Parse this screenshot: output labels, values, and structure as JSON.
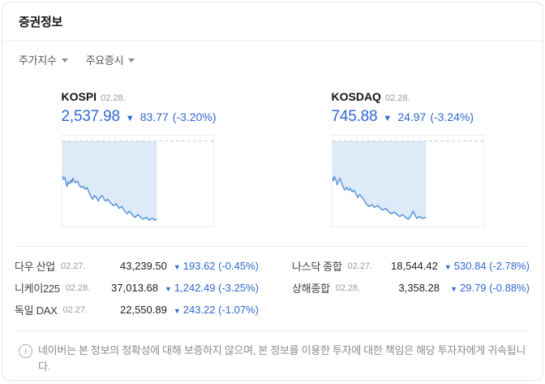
{
  "widget": {
    "title": "증권정보"
  },
  "tabs": [
    {
      "label": "주가지수"
    },
    {
      "label": "주요증시"
    }
  ],
  "colors": {
    "down_blue": "#3068d2",
    "chart_line": "#5b94d6",
    "chart_fill": "#ddeaf8",
    "dash_line": "#c9c9c9",
    "chart_border": "#ededed"
  },
  "indices": [
    {
      "name": "KOSPI",
      "date": "02.28.",
      "value": "2,537.98",
      "change": "83.77",
      "change_pct": "(-3.20%)"
    },
    {
      "name": "KOSDAQ",
      "date": "02.28.",
      "value": "745.88",
      "change": "24.97",
      "change_pct": "(-3.24%)"
    }
  ],
  "chart_data": [
    {
      "type": "line",
      "name": "KOSPI",
      "legend": "intraday index line, dashed previous-close reference at top, shaded area between line and reference",
      "dash_y": 0.06,
      "fill_end": 0.625,
      "points": [
        [
          0,
          0.44
        ],
        [
          0.01,
          0.48
        ],
        [
          0.025,
          0.46
        ],
        [
          0.04,
          0.53
        ],
        [
          0.05,
          0.56
        ],
        [
          0.06,
          0.51
        ],
        [
          0.075,
          0.53
        ],
        [
          0.09,
          0.49
        ],
        [
          0.1,
          0.52
        ],
        [
          0.11,
          0.47
        ],
        [
          0.125,
          0.5
        ],
        [
          0.14,
          0.52
        ],
        [
          0.16,
          0.5
        ],
        [
          0.18,
          0.55
        ],
        [
          0.2,
          0.57
        ],
        [
          0.22,
          0.56
        ],
        [
          0.24,
          0.59
        ],
        [
          0.26,
          0.57
        ],
        [
          0.28,
          0.62
        ],
        [
          0.3,
          0.67
        ],
        [
          0.32,
          0.7
        ],
        [
          0.34,
          0.66
        ],
        [
          0.36,
          0.68
        ],
        [
          0.38,
          0.72
        ],
        [
          0.4,
          0.68
        ],
        [
          0.42,
          0.66
        ],
        [
          0.44,
          0.7
        ],
        [
          0.46,
          0.72
        ],
        [
          0.48,
          0.7
        ],
        [
          0.51,
          0.74
        ],
        [
          0.54,
          0.77
        ],
        [
          0.57,
          0.75
        ],
        [
          0.6,
          0.8
        ],
        [
          0.63,
          0.78
        ],
        [
          0.66,
          0.83
        ],
        [
          0.69,
          0.86
        ],
        [
          0.71,
          0.83
        ],
        [
          0.74,
          0.87
        ],
        [
          0.77,
          0.9
        ],
        [
          0.8,
          0.87
        ],
        [
          0.83,
          0.9
        ],
        [
          0.86,
          0.92
        ],
        [
          0.89,
          0.9
        ],
        [
          0.92,
          0.93
        ],
        [
          0.95,
          0.91
        ],
        [
          0.98,
          0.93
        ],
        [
          1,
          0.92
        ]
      ]
    },
    {
      "type": "line",
      "name": "KOSDAQ",
      "legend": "intraday index line, dashed previous-close reference at top, shaded area between line and reference",
      "dash_y": 0.06,
      "fill_end": 0.62,
      "points": [
        [
          0,
          0.46
        ],
        [
          0.01,
          0.5
        ],
        [
          0.02,
          0.45
        ],
        [
          0.035,
          0.48
        ],
        [
          0.05,
          0.54
        ],
        [
          0.065,
          0.5
        ],
        [
          0.08,
          0.47
        ],
        [
          0.095,
          0.52
        ],
        [
          0.11,
          0.56
        ],
        [
          0.13,
          0.6
        ],
        [
          0.15,
          0.57
        ],
        [
          0.17,
          0.6
        ],
        [
          0.19,
          0.58
        ],
        [
          0.21,
          0.62
        ],
        [
          0.23,
          0.6
        ],
        [
          0.25,
          0.64
        ],
        [
          0.27,
          0.68
        ],
        [
          0.29,
          0.65
        ],
        [
          0.31,
          0.67
        ],
        [
          0.33,
          0.7
        ],
        [
          0.36,
          0.75
        ],
        [
          0.39,
          0.78
        ],
        [
          0.42,
          0.76
        ],
        [
          0.45,
          0.79
        ],
        [
          0.48,
          0.77
        ],
        [
          0.51,
          0.8
        ],
        [
          0.54,
          0.82
        ],
        [
          0.57,
          0.8
        ],
        [
          0.6,
          0.84
        ],
        [
          0.63,
          0.86
        ],
        [
          0.66,
          0.84
        ],
        [
          0.69,
          0.87
        ],
        [
          0.72,
          0.89
        ],
        [
          0.75,
          0.87
        ],
        [
          0.78,
          0.9
        ],
        [
          0.81,
          0.92
        ],
        [
          0.84,
          0.88
        ],
        [
          0.86,
          0.83
        ],
        [
          0.88,
          0.87
        ],
        [
          0.9,
          0.91
        ],
        [
          0.93,
          0.89
        ],
        [
          0.96,
          0.91
        ],
        [
          1,
          0.9
        ]
      ]
    }
  ],
  "world_table": {
    "left_rows": [
      {
        "name": "다우 산업",
        "date": "02.27.",
        "value": "43,239.50",
        "change": "193.62 (-0.45%)"
      },
      {
        "name": "니케이225",
        "date": "02.28.",
        "value": "37,013.68",
        "change": "1,242.49 (-3.25%)"
      },
      {
        "name": "독일 DAX",
        "date": "02.27.",
        "value": "22,550.89",
        "change": "243.22 (-1.07%)"
      }
    ],
    "right_rows": [
      {
        "name": "나스닥 종합",
        "date": "02.27.",
        "value": "18,544.42",
        "change": "530.84 (-2.78%)"
      },
      {
        "name": "상해종합",
        "date": "02.28.",
        "value": "3,358.28",
        "change": "29.79 (-0.88%)"
      }
    ]
  },
  "footer": {
    "disclaimer": "네이버는 본 정보의 정확성에 대해 보증하지 않으며, 본 정보를 이용한 투자에 대한 책임은 해당 투자자에게 귀속됩니다."
  }
}
